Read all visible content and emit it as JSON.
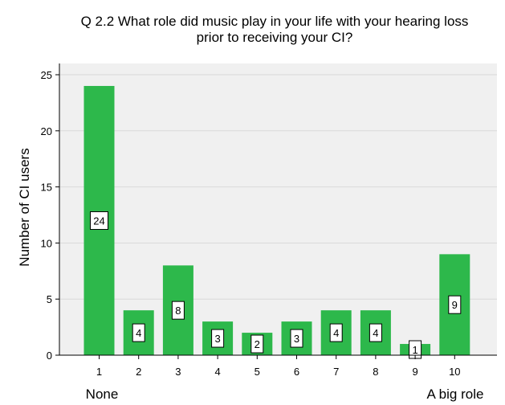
{
  "chart_data": {
    "type": "bar",
    "title_lines": [
      "Q 2.2 What role did music play in your life with your hearing loss",
      "prior to receiving your CI?"
    ],
    "ylabel": "Number of CI users",
    "xlabel": "",
    "x_anchor_labels": {
      "low": "None",
      "high": "A big role"
    },
    "categories": [
      "1",
      "2",
      "3",
      "4",
      "5",
      "6",
      "7",
      "8",
      "9",
      "10"
    ],
    "values": [
      24,
      4,
      8,
      3,
      2,
      3,
      4,
      4,
      1,
      9
    ],
    "data_labels": [
      "24",
      "4",
      "8",
      "3",
      "2",
      "3",
      "4",
      "4",
      "1",
      "9"
    ],
    "ylim": [
      0,
      25
    ],
    "yticks": [
      "0",
      "5",
      "10",
      "15",
      "20",
      "25"
    ],
    "grid": true,
    "colors": {
      "bar": "#2db84b",
      "plot_background": "#f0f0f0",
      "grid": "#d9d9d9",
      "axis": "#000000"
    }
  }
}
